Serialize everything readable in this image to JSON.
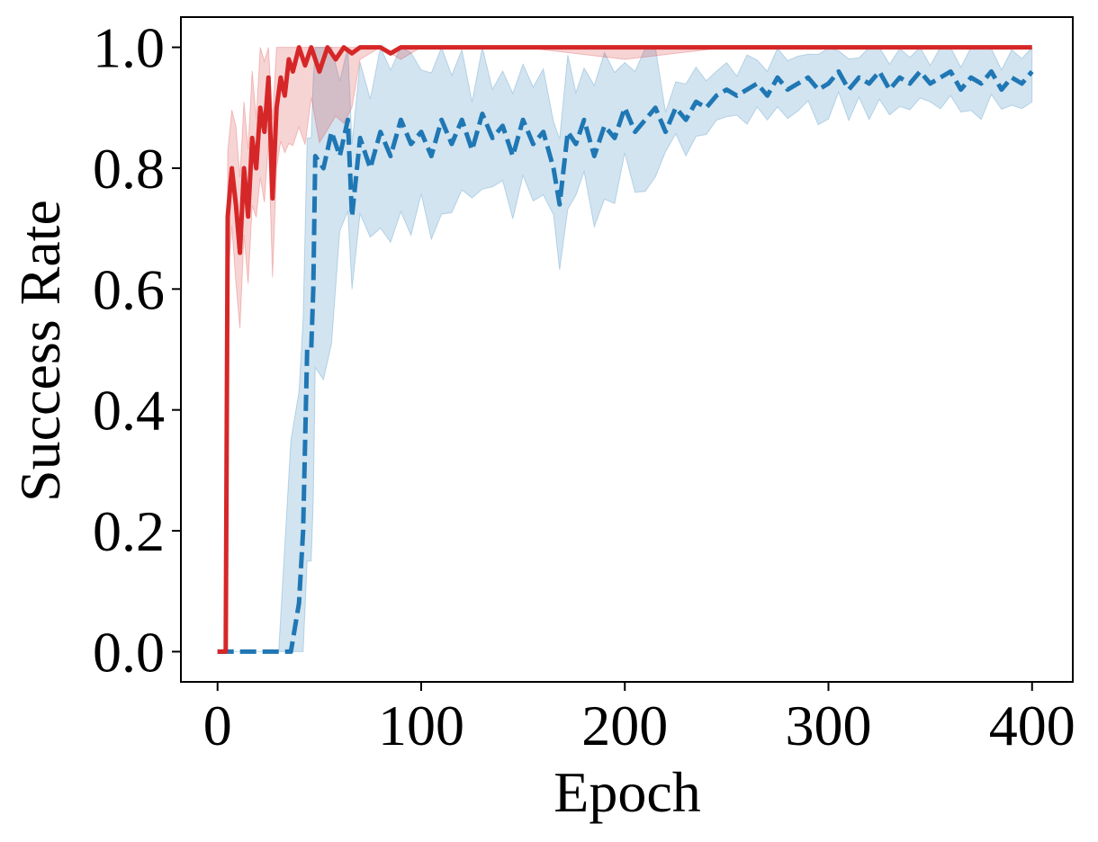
{
  "chart_data": {
    "type": "line",
    "title": "",
    "xlabel": "Epoch",
    "ylabel": "Success Rate",
    "xlim": [
      -18,
      420
    ],
    "ylim": [
      -0.05,
      1.05
    ],
    "xticks": [
      0,
      100,
      200,
      300,
      400
    ],
    "yticks": [
      0.0,
      0.2,
      0.4,
      0.6,
      0.8,
      1.0
    ],
    "xtick_labels": [
      "0",
      "100",
      "200",
      "300",
      "400"
    ],
    "ytick_labels": [
      "0.0",
      "0.2",
      "0.4",
      "0.6",
      "0.8",
      "1.0"
    ],
    "grid": false,
    "legend": "none",
    "series": [
      {
        "color": "#1f77b4",
        "line_style": "dashed",
        "shaded_band": true,
        "points": [
          [
            0,
            0.0
          ],
          [
            10,
            0.0
          ],
          [
            20,
            0.0
          ],
          [
            30,
            0.0
          ],
          [
            36,
            0.0
          ],
          [
            40,
            0.08
          ],
          [
            42,
            0.2
          ],
          [
            44,
            0.5
          ],
          [
            46,
            0.5
          ],
          [
            47,
            0.6
          ],
          [
            48,
            0.82
          ],
          [
            52,
            0.8
          ],
          [
            56,
            0.86
          ],
          [
            60,
            0.82
          ],
          [
            64,
            0.88
          ],
          [
            66,
            0.72
          ],
          [
            70,
            0.85
          ],
          [
            75,
            0.8
          ],
          [
            80,
            0.86
          ],
          [
            85,
            0.82
          ],
          [
            90,
            0.88
          ],
          [
            95,
            0.84
          ],
          [
            100,
            0.86
          ],
          [
            105,
            0.82
          ],
          [
            110,
            0.88
          ],
          [
            115,
            0.84
          ],
          [
            120,
            0.88
          ],
          [
            125,
            0.83
          ],
          [
            130,
            0.89
          ],
          [
            135,
            0.85
          ],
          [
            140,
            0.87
          ],
          [
            145,
            0.82
          ],
          [
            150,
            0.88
          ],
          [
            155,
            0.84
          ],
          [
            160,
            0.86
          ],
          [
            165,
            0.8
          ],
          [
            168,
            0.74
          ],
          [
            172,
            0.86
          ],
          [
            176,
            0.84
          ],
          [
            180,
            0.88
          ],
          [
            185,
            0.82
          ],
          [
            190,
            0.87
          ],
          [
            195,
            0.85
          ],
          [
            200,
            0.9
          ],
          [
            205,
            0.86
          ],
          [
            210,
            0.88
          ],
          [
            215,
            0.9
          ],
          [
            220,
            0.86
          ],
          [
            225,
            0.9
          ],
          [
            230,
            0.88
          ],
          [
            235,
            0.91
          ],
          [
            240,
            0.9
          ],
          [
            245,
            0.92
          ],
          [
            250,
            0.93
          ],
          [
            255,
            0.92
          ],
          [
            260,
            0.93
          ],
          [
            265,
            0.94
          ],
          [
            270,
            0.92
          ],
          [
            275,
            0.95
          ],
          [
            280,
            0.93
          ],
          [
            285,
            0.94
          ],
          [
            290,
            0.95
          ],
          [
            295,
            0.93
          ],
          [
            300,
            0.94
          ],
          [
            305,
            0.96
          ],
          [
            310,
            0.93
          ],
          [
            315,
            0.95
          ],
          [
            320,
            0.94
          ],
          [
            325,
            0.96
          ],
          [
            330,
            0.93
          ],
          [
            335,
            0.95
          ],
          [
            340,
            0.94
          ],
          [
            345,
            0.96
          ],
          [
            350,
            0.94
          ],
          [
            355,
            0.95
          ],
          [
            360,
            0.96
          ],
          [
            365,
            0.93
          ],
          [
            370,
            0.95
          ],
          [
            375,
            0.94
          ],
          [
            380,
            0.96
          ],
          [
            385,
            0.93
          ],
          [
            390,
            0.95
          ],
          [
            395,
            0.94
          ],
          [
            400,
            0.96
          ]
        ]
      },
      {
        "color": "#d62728",
        "line_style": "solid",
        "shaded_band": true,
        "points": [
          [
            0,
            0.0
          ],
          [
            3,
            0.0
          ],
          [
            4,
            0.0
          ],
          [
            5,
            0.72
          ],
          [
            7,
            0.8
          ],
          [
            9,
            0.74
          ],
          [
            11,
            0.66
          ],
          [
            13,
            0.8
          ],
          [
            15,
            0.72
          ],
          [
            17,
            0.85
          ],
          [
            19,
            0.8
          ],
          [
            21,
            0.9
          ],
          [
            23,
            0.86
          ],
          [
            25,
            0.95
          ],
          [
            27,
            0.75
          ],
          [
            29,
            0.9
          ],
          [
            31,
            0.95
          ],
          [
            33,
            0.92
          ],
          [
            35,
            0.98
          ],
          [
            37,
            0.96
          ],
          [
            40,
            1.0
          ],
          [
            43,
            0.97
          ],
          [
            46,
            1.0
          ],
          [
            50,
            0.96
          ],
          [
            54,
            1.0
          ],
          [
            58,
            0.98
          ],
          [
            62,
            1.0
          ],
          [
            66,
            0.99
          ],
          [
            70,
            1.0
          ],
          [
            80,
            1.0
          ],
          [
            85,
            0.99
          ],
          [
            90,
            1.0
          ],
          [
            100,
            1.0
          ],
          [
            150,
            1.0
          ],
          [
            200,
            1.0
          ],
          [
            250,
            1.0
          ],
          [
            300,
            1.0
          ],
          [
            350,
            1.0
          ],
          [
            400,
            1.0
          ]
        ]
      }
    ]
  }
}
